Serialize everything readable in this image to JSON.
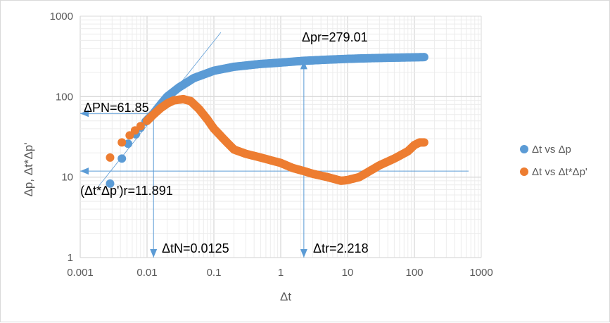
{
  "chart_data": {
    "type": "scatter",
    "xscale": "log",
    "yscale": "log",
    "xlabel": "Δt",
    "ylabel": "Δp, Δt*Δp'",
    "xlim": [
      0.001,
      1000
    ],
    "ylim": [
      1,
      1000
    ],
    "xticks": [
      "0.001",
      "0.01",
      "0.1",
      "1",
      "10",
      "100",
      "1000"
    ],
    "yticks": [
      "1",
      "10",
      "100",
      "1000"
    ],
    "grid": true,
    "legend_position": "right",
    "series": [
      {
        "name": "Δt vs Δp",
        "color": "#5b9bd5",
        "x": [
          0.0028,
          0.0042,
          0.0052,
          0.0068,
          0.008,
          0.0095,
          0.0125,
          0.016,
          0.02,
          0.03,
          0.05,
          0.1,
          0.2,
          0.5,
          1,
          2.218,
          5,
          10,
          20,
          50,
          100,
          140
        ],
        "y": [
          8.3,
          17,
          26,
          34,
          41,
          49,
          61.85,
          80,
          100,
          130,
          170,
          210,
          235,
          255,
          265,
          279.01,
          288,
          295,
          300,
          305,
          308,
          310
        ]
      },
      {
        "name": "Δt vs Δt*Δp'",
        "color": "#ed7d31",
        "x": [
          0.0028,
          0.0042,
          0.0055,
          0.0066,
          0.008,
          0.01,
          0.0125,
          0.016,
          0.02,
          0.025,
          0.035,
          0.045,
          0.06,
          0.08,
          0.1,
          0.15,
          0.2,
          0.3,
          0.5,
          1,
          1.5,
          2.218,
          3,
          5,
          8,
          10,
          15,
          20,
          30,
          50,
          80,
          100,
          120,
          140
        ],
        "y": [
          17.5,
          27,
          33,
          38,
          43,
          50,
          60,
          72,
          82,
          90,
          93,
          88,
          70,
          52,
          40,
          28,
          22,
          19.5,
          17.5,
          15,
          13,
          11.891,
          11,
          10,
          9,
          9.2,
          10,
          11.5,
          14,
          17,
          21,
          25,
          27,
          27
        ]
      }
    ],
    "annotations": [
      {
        "text": "ΔPN=61.85",
        "y": 61.85,
        "x": 0.0125
      },
      {
        "text": "(Δt*Δp')r=11.891",
        "y": 11.891
      },
      {
        "text": "ΔtN=0.0125",
        "x": 0.0125
      },
      {
        "text": "Δtr=2.218",
        "x": 2.218
      },
      {
        "text": "Δpr=279.01",
        "x": 2.218,
        "y": 279.01
      }
    ],
    "unit_slope_line": {
      "x": [
        0.00192,
        0.127
      ],
      "y": [
        7.85,
        628
      ]
    }
  }
}
